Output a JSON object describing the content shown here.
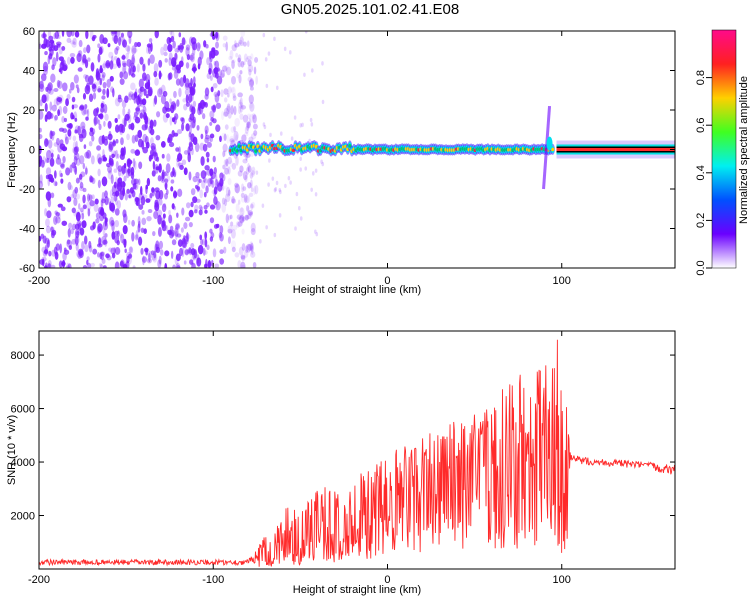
{
  "title": "GN05.2025.101.02.41.E08",
  "colors": {
    "background": "#ffffff",
    "snr_line": "#ff2a2a",
    "spectrogram_scatter": "#7a1cff",
    "ridge": "#00d060",
    "ridge_hot": "#ff2a2a",
    "colorbar_stops": [
      "#ff0a8a",
      "#ff2020",
      "#ffd000",
      "#40ff20",
      "#00f0f0",
      "#0050ff",
      "#6a00ff",
      "#ffffff"
    ]
  },
  "chart_data": [
    {
      "type": "heatmap",
      "title": "GN05.2025.101.02.41.E08",
      "xlabel": "Height of straight line (km)",
      "ylabel": "Frequency (Hz)",
      "xlim": [
        -200,
        165
      ],
      "ylim": [
        -60,
        60
      ],
      "xticks": [
        "-200",
        "-100",
        "0",
        "100"
      ],
      "xtick_values": [
        -200,
        -100,
        0,
        100
      ],
      "yticks": [
        "60",
        "40",
        "20",
        "0",
        "-20",
        "-40",
        "-60"
      ],
      "ytick_values": [
        60,
        40,
        20,
        0,
        -20,
        -40,
        -60
      ],
      "colorbar": {
        "label": "Normalized spectral amplitude",
        "range": [
          0,
          1
        ],
        "ticks": [
          "0.0",
          "0.2",
          "0.4",
          "0.6",
          "0.8"
        ],
        "tick_values": [
          0.0,
          0.2,
          0.4,
          0.6,
          0.8
        ]
      },
      "features": {
        "noise_region_x": [
          -200,
          -75
        ],
        "noise_freq_range": [
          -60,
          60
        ],
        "ridge_x": [
          -90,
          95
        ],
        "ridge_freq": 0,
        "ridge_halfwidth_hz": 3,
        "vertical_spike_x": 93,
        "spike_freq_range": [
          -20,
          22
        ],
        "steady_band_x": [
          97,
          165
        ],
        "steady_band_freq": 0
      },
      "grid": false
    },
    {
      "type": "line",
      "xlabel": "Height of straight line (km)",
      "ylabel": "SNR (10 * v/v)",
      "xlim": [
        -200,
        165
      ],
      "ylim": [
        0,
        8900
      ],
      "xticks": [
        "-200",
        "-100",
        "0",
        "100"
      ],
      "xtick_values": [
        -200,
        -100,
        0,
        100
      ],
      "yticks": [
        "2000",
        "4000",
        "6000",
        "8000"
      ],
      "ytick_values": [
        2000,
        4000,
        6000,
        8000
      ],
      "envelope": {
        "x": [
          -200,
          -80,
          -75,
          -60,
          -40,
          -20,
          0,
          20,
          40,
          60,
          80,
          95,
          100,
          105,
          110,
          130,
          150,
          165
        ],
        "base": [
          150,
          150,
          250,
          600,
          1000,
          1400,
          2200,
          2800,
          3200,
          3300,
          3300,
          3000,
          2500,
          3900,
          3800,
          3700,
          3600,
          3300
        ],
        "peak": [
          350,
          350,
          800,
          2200,
          3000,
          3600,
          4300,
          5000,
          5600,
          6500,
          7500,
          8300,
          8900,
          4300,
          4200,
          4100,
          4000,
          3900
        ]
      },
      "grid": false
    }
  ]
}
